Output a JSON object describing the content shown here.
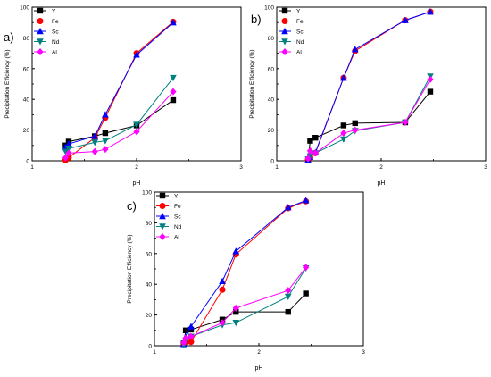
{
  "series_styles": [
    {
      "name": "Y",
      "color": "#000000",
      "marker": "square"
    },
    {
      "name": "Fe",
      "color": "#ff0000",
      "marker": "circle"
    },
    {
      "name": "Sc",
      "color": "#0000ff",
      "marker": "triangle-up"
    },
    {
      "name": "Nd",
      "color": "#008080",
      "marker": "triangle-down"
    },
    {
      "name": "Al",
      "color": "#ff00ff",
      "marker": "diamond"
    }
  ],
  "chart_data": [
    {
      "type": "line",
      "panel_label": "a)",
      "xlabel": "pH",
      "ylabel": "Precipitation Efficiency (%)",
      "xlim": [
        1,
        3
      ],
      "ylim": [
        0,
        100
      ],
      "xticks": [
        1,
        2,
        3
      ],
      "yticks": [
        0,
        20,
        40,
        60,
        80,
        100
      ],
      "legend": "top-left",
      "series": [
        {
          "name": "Y",
          "x": [
            1.32,
            1.35,
            1.6,
            1.7,
            2.0,
            2.35
          ],
          "y": [
            10.0,
            12.5,
            16.0,
            18.0,
            23.0,
            39.5
          ]
        },
        {
          "name": "Fe",
          "x": [
            1.32,
            1.35,
            1.6,
            1.7,
            2.0,
            2.35
          ],
          "y": [
            0.5,
            2.0,
            15.0,
            28.0,
            70.0,
            90.5
          ]
        },
        {
          "name": "Sc",
          "x": [
            1.32,
            1.35,
            1.6,
            1.7,
            2.0,
            2.35
          ],
          "y": [
            9.0,
            11.0,
            16.0,
            30.0,
            69.0,
            90.0
          ]
        },
        {
          "name": "Nd",
          "x": [
            1.32,
            1.35,
            1.6,
            1.7,
            2.0,
            2.35
          ],
          "y": [
            6.0,
            8.0,
            12.0,
            13.0,
            23.5,
            54.0
          ]
        },
        {
          "name": "Al",
          "x": [
            1.32,
            1.35,
            1.6,
            1.7,
            2.0,
            2.35
          ],
          "y": [
            2.0,
            5.0,
            6.0,
            7.5,
            19.0,
            45.0
          ]
        }
      ]
    },
    {
      "type": "line",
      "panel_label": "b)",
      "xlabel": "pH",
      "ylabel": "Precipitation Efficiency (%)",
      "xlim": [
        1,
        3
      ],
      "ylim": [
        0,
        100
      ],
      "xticks": [
        1,
        2,
        3
      ],
      "yticks": [
        0,
        20,
        40,
        60,
        80,
        100
      ],
      "legend": "top-left",
      "series": [
        {
          "name": "Y",
          "x": [
            1.3,
            1.32,
            1.37,
            1.64,
            1.75,
            2.23,
            2.47
          ],
          "y": [
            0.5,
            13.0,
            15.0,
            23.0,
            24.5,
            25.0,
            45.0
          ]
        },
        {
          "name": "Fe",
          "x": [
            1.3,
            1.32,
            1.37,
            1.64,
            1.75,
            2.23,
            2.47
          ],
          "y": [
            0.5,
            2.0,
            5.0,
            54.0,
            71.5,
            91.5,
            97.0
          ]
        },
        {
          "name": "Sc",
          "x": [
            1.3,
            1.32,
            1.37,
            1.64,
            1.75,
            2.23,
            2.47
          ],
          "y": [
            0.5,
            2.5,
            5.5,
            54.0,
            72.5,
            91.5,
            97.0
          ]
        },
        {
          "name": "Nd",
          "x": [
            1.3,
            1.32,
            1.37,
            1.64,
            1.75,
            2.23,
            2.47
          ],
          "y": [
            1.0,
            3.0,
            5.0,
            14.0,
            19.5,
            25.0,
            55.0
          ]
        },
        {
          "name": "Al",
          "x": [
            1.3,
            1.32,
            1.37,
            1.64,
            1.75,
            2.23,
            2.47
          ],
          "y": [
            1.5,
            6.5,
            5.0,
            18.0,
            20.0,
            25.0,
            53.0
          ]
        }
      ]
    },
    {
      "type": "line",
      "panel_label": "c)",
      "xlabel": "pH",
      "ylabel": "Precipitation Efficiency (%)",
      "xlim": [
        1,
        3
      ],
      "ylim": [
        0,
        100
      ],
      "xticks": [
        1,
        2,
        3
      ],
      "yticks": [
        0,
        20,
        40,
        60,
        80,
        100
      ],
      "legend": "top-left",
      "series": [
        {
          "name": "Y",
          "x": [
            1.28,
            1.3,
            1.35,
            1.65,
            1.78,
            2.28,
            2.45
          ],
          "y": [
            1.5,
            10.0,
            10.5,
            17.0,
            22.0,
            22.0,
            34.0
          ]
        },
        {
          "name": "Fe",
          "x": [
            1.28,
            1.3,
            1.35,
            1.65,
            1.78,
            2.28,
            2.45
          ],
          "y": [
            1.0,
            2.0,
            2.5,
            36.5,
            59.5,
            89.5,
            94.0
          ]
        },
        {
          "name": "Sc",
          "x": [
            1.28,
            1.3,
            1.35,
            1.65,
            1.78,
            2.28,
            2.45
          ],
          "y": [
            1.0,
            6.0,
            12.5,
            42.0,
            61.5,
            90.0,
            94.5
          ]
        },
        {
          "name": "Nd",
          "x": [
            1.28,
            1.3,
            1.35,
            1.65,
            1.78,
            2.28,
            2.45
          ],
          "y": [
            0.5,
            3.0,
            6.0,
            13.5,
            15.0,
            32.0,
            50.5
          ]
        },
        {
          "name": "Al",
          "x": [
            1.28,
            1.3,
            1.35,
            1.65,
            1.78,
            2.28,
            2.45
          ],
          "y": [
            2.0,
            5.0,
            6.0,
            15.0,
            24.5,
            36.0,
            51.0
          ]
        }
      ]
    }
  ]
}
